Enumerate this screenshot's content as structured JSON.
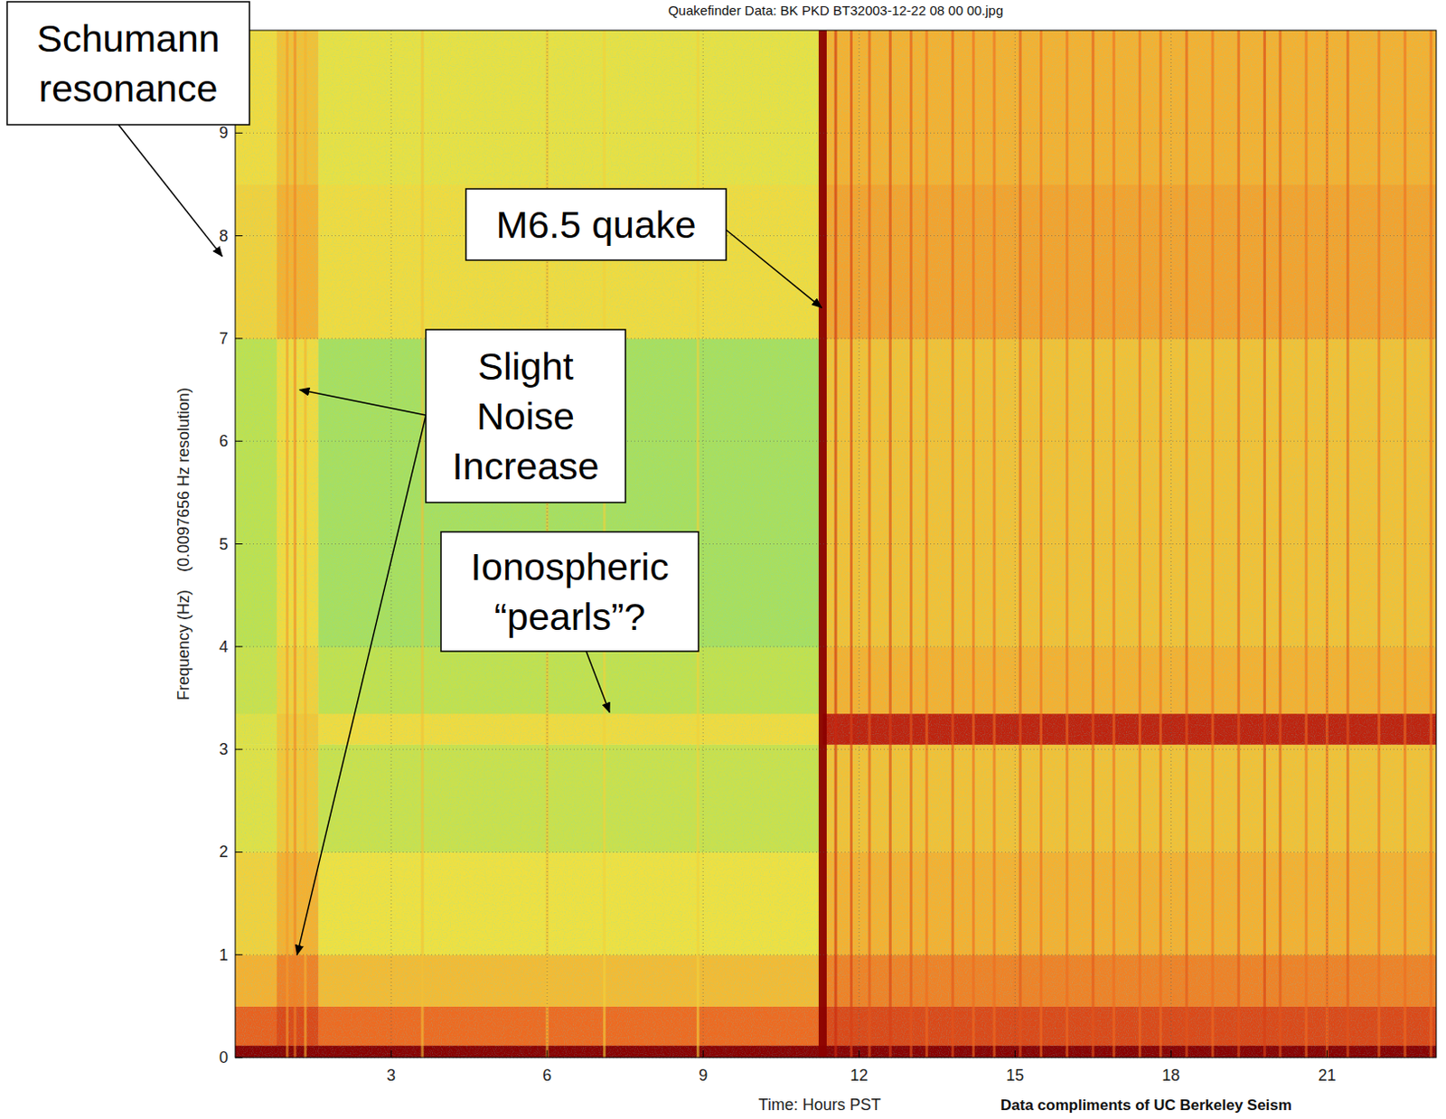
{
  "chart_data": {
    "type": "spectrogram",
    "title": "Quakefinder Data: BK PKD BT32003-12-22 08 00 00.jpg",
    "x_label": "Time: Hours PST",
    "y_label": "Frequency (Hz)    (0.0097656 Hz resolution)",
    "credit": "Data compliments of UC Berkeley Seism",
    "xlim": [
      0,
      23.1
    ],
    "ylim": [
      0,
      10
    ],
    "xticks": [
      3,
      6,
      9,
      12,
      15,
      18,
      21
    ],
    "yticks": [
      0,
      1,
      2,
      3,
      4,
      5,
      6,
      7,
      8,
      9
    ],
    "grid": true,
    "freq_bins": [
      0,
      0.12,
      0.5,
      1,
      2,
      3.05,
      3.35,
      4,
      7,
      8.5,
      10
    ],
    "periods": [
      {
        "start": 0,
        "end": 0.8,
        "levels": [
          1.0,
          0.72,
          0.55,
          0.45,
          0.36,
          0.36,
          0.3,
          0.27,
          0.45,
          0.42
        ]
      },
      {
        "start": 0.8,
        "end": 1.6,
        "levels": [
          1.0,
          0.78,
          0.65,
          0.55,
          0.48,
          0.48,
          0.45,
          0.42,
          0.55,
          0.5
        ]
      },
      {
        "start": 1.6,
        "end": 11.3,
        "levels": [
          1.0,
          0.7,
          0.52,
          0.4,
          0.3,
          0.42,
          0.28,
          0.22,
          0.42,
          0.38
        ]
      },
      {
        "start": 11.3,
        "end": 23.1,
        "levels": [
          1.0,
          0.78,
          0.65,
          0.55,
          0.5,
          0.88,
          0.55,
          0.5,
          0.58,
          0.55
        ]
      }
    ],
    "streaks": [
      {
        "time": 1.0,
        "level": 0.6
      },
      {
        "time": 1.15,
        "level": 0.65
      },
      {
        "time": 1.35,
        "level": 0.55
      },
      {
        "time": 3.6,
        "level": 0.5
      },
      {
        "time": 6.0,
        "level": 0.5
      },
      {
        "time": 7.1,
        "level": 0.45
      },
      {
        "time": 8.9,
        "level": 0.45
      },
      {
        "time": 11.3,
        "level": 1.0
      },
      {
        "time": 11.55,
        "level": 0.85
      },
      {
        "time": 11.85,
        "level": 0.8
      },
      {
        "time": 12.2,
        "level": 0.75
      },
      {
        "time": 12.6,
        "level": 0.8
      },
      {
        "time": 13.0,
        "level": 0.75
      },
      {
        "time": 13.3,
        "level": 0.7
      },
      {
        "time": 13.8,
        "level": 0.75
      },
      {
        "time": 14.2,
        "level": 0.7
      },
      {
        "time": 14.6,
        "level": 0.7
      },
      {
        "time": 15.1,
        "level": 0.75
      },
      {
        "time": 15.5,
        "level": 0.7
      },
      {
        "time": 16.0,
        "level": 0.7
      },
      {
        "time": 16.5,
        "level": 0.75
      },
      {
        "time": 16.9,
        "level": 0.7
      },
      {
        "time": 17.4,
        "level": 0.7
      },
      {
        "time": 17.8,
        "level": 0.7
      },
      {
        "time": 18.3,
        "level": 0.75
      },
      {
        "time": 18.8,
        "level": 0.7
      },
      {
        "time": 19.3,
        "level": 0.75
      },
      {
        "time": 19.8,
        "level": 0.8
      },
      {
        "time": 20.1,
        "level": 0.75
      },
      {
        "time": 20.6,
        "level": 0.7
      },
      {
        "time": 21.0,
        "level": 0.7
      },
      {
        "time": 21.4,
        "level": 0.75
      },
      {
        "time": 22.0,
        "level": 0.7
      },
      {
        "time": 22.5,
        "level": 0.7
      },
      {
        "time": 23.0,
        "level": 0.7
      }
    ],
    "annotations": [
      {
        "lines": [
          "Schumann",
          "resonance"
        ],
        "targets": [
          {
            "x": -0.25,
            "y": 7.8
          }
        ]
      },
      {
        "lines": [
          "M6.5 quake"
        ],
        "targets": [
          {
            "x": 11.28,
            "y": 7.3
          }
        ]
      },
      {
        "lines": [
          "Slight",
          "Noise",
          "Increase"
        ],
        "targets": [
          {
            "x": 1.24,
            "y": 6.5
          },
          {
            "x": 1.19,
            "y": 1.0
          }
        ]
      },
      {
        "lines": [
          "Ionospheric",
          "“pearls”?"
        ],
        "targets": [
          {
            "x": 7.2,
            "y": 3.36
          }
        ]
      }
    ]
  }
}
